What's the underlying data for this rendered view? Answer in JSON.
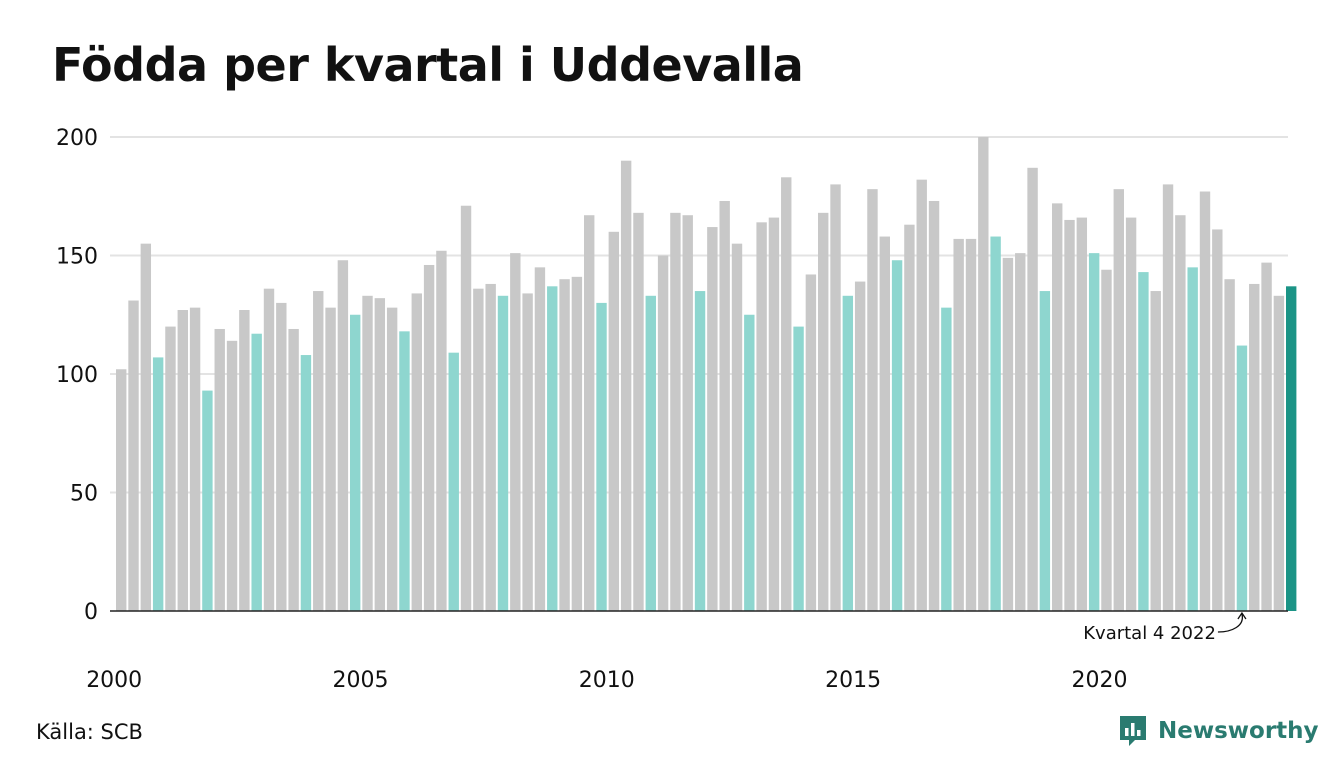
{
  "chart_data": {
    "type": "bar",
    "title": "Födda per kvartal i Uddevalla",
    "source": "Källa: SCB",
    "brand": "Newsworthy",
    "ylim": [
      0,
      200
    ],
    "yticks": [
      0,
      50,
      100,
      150,
      200
    ],
    "xticks": [
      "2000",
      "2005",
      "2010",
      "2015",
      "2020"
    ],
    "grid": true,
    "annotation": "Kvartal 4 2022",
    "colors": {
      "default": "#c8c8c8",
      "quarter1": "#8ed6cf",
      "latest": "#1b9486",
      "brand": "#2a7b70",
      "grid": "#e3e3e3",
      "axis": "#222222"
    },
    "values": [
      102,
      131,
      155,
      107,
      120,
      127,
      128,
      93,
      119,
      114,
      127,
      117,
      136,
      130,
      119,
      108,
      135,
      128,
      148,
      125,
      133,
      132,
      128,
      118,
      134,
      146,
      152,
      109,
      171,
      136,
      138,
      133,
      151,
      134,
      145,
      137,
      140,
      141,
      167,
      130,
      160,
      190,
      168,
      133,
      150,
      168,
      167,
      135,
      162,
      173,
      155,
      125,
      164,
      166,
      183,
      120,
      142,
      168,
      180,
      133,
      139,
      178,
      158,
      148,
      163,
      182,
      173,
      128,
      157,
      157,
      200,
      158,
      149,
      151,
      187,
      135,
      172,
      165,
      166,
      151,
      144,
      178,
      166,
      143,
      135,
      180,
      167,
      145,
      177,
      161,
      140,
      112,
      138,
      147,
      133,
      137
    ]
  }
}
